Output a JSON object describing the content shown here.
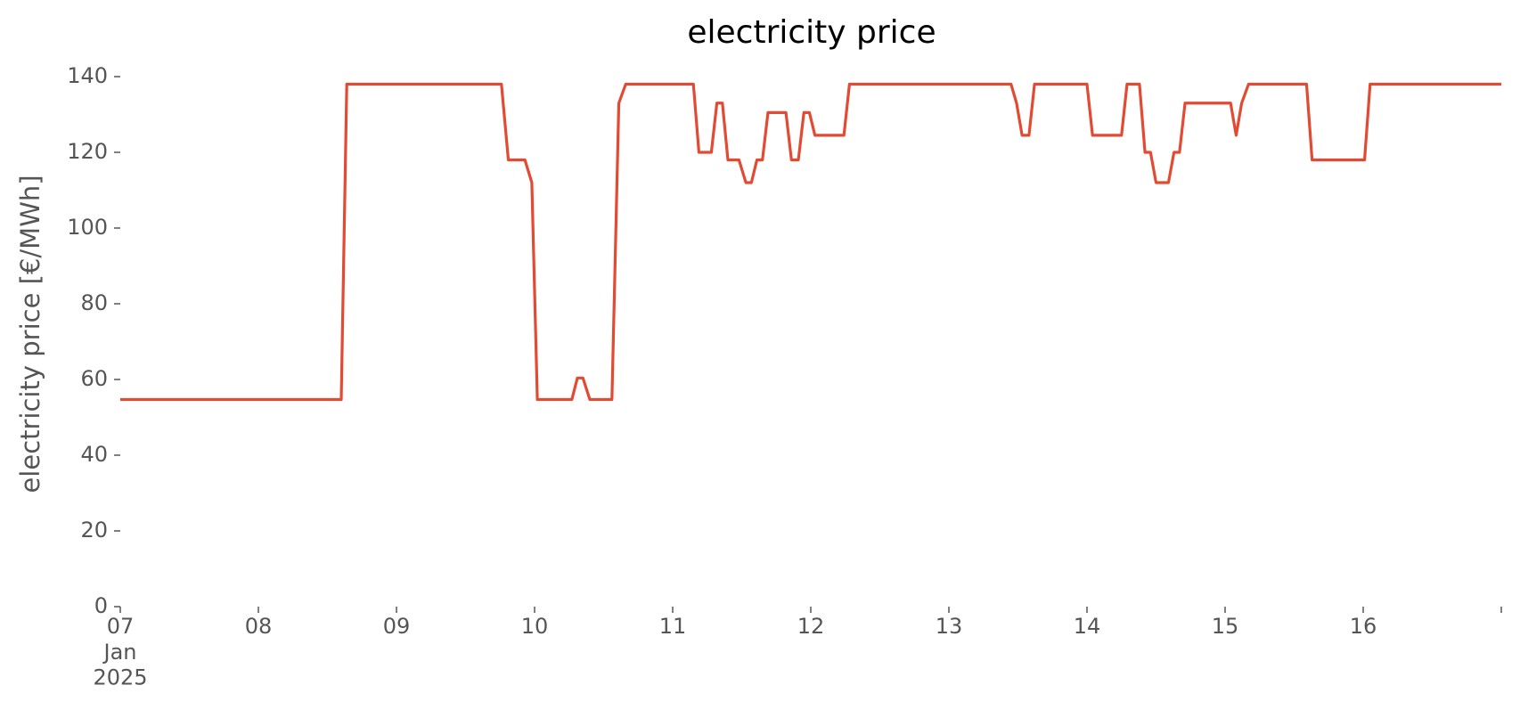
{
  "chart_data": {
    "type": "line",
    "title": "electricity price",
    "y_label": "electricity price [€/MWh]",
    "x": [
      7.0,
      8.6,
      8.64,
      9.76,
      9.81,
      9.93,
      9.98,
      10.02,
      10.27,
      10.31,
      10.35,
      10.4,
      10.56,
      10.61,
      10.66,
      11.15,
      11.19,
      11.28,
      11.32,
      11.36,
      11.4,
      11.48,
      11.53,
      11.57,
      11.61,
      11.65,
      11.69,
      11.82,
      11.86,
      11.91,
      11.95,
      11.99,
      12.03,
      12.24,
      12.28,
      13.45,
      13.49,
      13.53,
      13.58,
      13.62,
      14.0,
      14.04,
      14.25,
      14.29,
      14.38,
      14.42,
      14.46,
      14.5,
      14.59,
      14.63,
      14.67,
      14.71,
      15.04,
      15.08,
      15.12,
      15.17,
      15.59,
      15.63,
      16.01,
      16.05,
      17.0
    ],
    "series": [
      {
        "name": "electricity price",
        "color": "#E24A33",
        "values": [
          54.7,
          54.7,
          138,
          138,
          118,
          118,
          112,
          54.7,
          54.7,
          60.4,
          60.4,
          54.7,
          54.7,
          133,
          138,
          138,
          120,
          120,
          133,
          133,
          118,
          118,
          112,
          112,
          118,
          118,
          130.5,
          130.5,
          118,
          118,
          130.5,
          130.5,
          124.5,
          124.5,
          138,
          138,
          133,
          124.5,
          124.5,
          138,
          138,
          124.5,
          124.5,
          138,
          138,
          120,
          120,
          112,
          112,
          120,
          120,
          133,
          133,
          124.5,
          133,
          138,
          138,
          118,
          118,
          138,
          138
        ]
      }
    ],
    "xlim": [
      7,
      17
    ],
    "xticks": [
      {
        "value": 7,
        "label": "07\nJan\n2025"
      },
      {
        "value": 8,
        "label": "08"
      },
      {
        "value": 9,
        "label": "09"
      },
      {
        "value": 10,
        "label": "10"
      },
      {
        "value": 11,
        "label": "11"
      },
      {
        "value": 12,
        "label": "12"
      },
      {
        "value": 13,
        "label": "13"
      },
      {
        "value": 14,
        "label": "14"
      },
      {
        "value": 15,
        "label": "15"
      },
      {
        "value": 16,
        "label": "16"
      },
      {
        "value": 17,
        "label": null
      }
    ],
    "ylim": [
      0,
      140
    ],
    "yticks": [
      0,
      20,
      40,
      60,
      80,
      100,
      120,
      140
    ],
    "grid": false
  }
}
